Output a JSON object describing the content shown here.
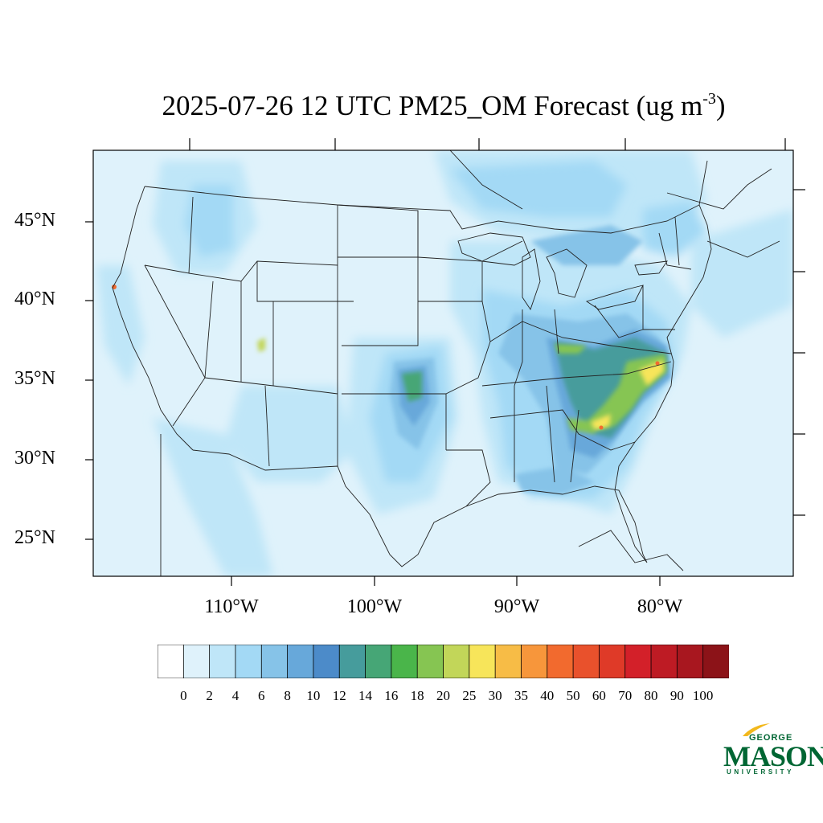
{
  "title": {
    "main": "2025-07-26 12 UTC PM25_OM Forecast (ug m",
    "sup": "-3",
    "close": ")"
  },
  "axes": {
    "lat_labels": [
      "45°N",
      "40°N",
      "35°N",
      "30°N",
      "25°N"
    ],
    "lon_labels": [
      "110°W",
      "100°W",
      "90°W",
      "80°W"
    ]
  },
  "colorbar": {
    "levels": [
      "0",
      "2",
      "4",
      "6",
      "8",
      "10",
      "12",
      "14",
      "16",
      "18",
      "20",
      "25",
      "30",
      "35",
      "40",
      "50",
      "60",
      "70",
      "80",
      "90",
      "100"
    ],
    "colors": [
      "#ffffff",
      "#dff2fb",
      "#bfe6f8",
      "#a3d9f5",
      "#86c3e8",
      "#67a8da",
      "#4c8bc9",
      "#469c9c",
      "#46a676",
      "#4ab54a",
      "#86c552",
      "#c2d659",
      "#f7e55a",
      "#f7bc46",
      "#f7963b",
      "#f26a2e",
      "#e9512c",
      "#df3a28",
      "#d32029",
      "#be1b24",
      "#a8171f",
      "#8c1318"
    ]
  },
  "map": {
    "background": "#dff2fb",
    "extent": {
      "lon_min": -119.6,
      "lon_max": -70.6,
      "lat_min": 22.7,
      "lat_max": 49.3
    }
  },
  "logo": {
    "george": "GEORGE",
    "mason": "MASON",
    "university": "UNIVERSITY",
    "color": "#006633",
    "accent": "#f2b81c"
  }
}
